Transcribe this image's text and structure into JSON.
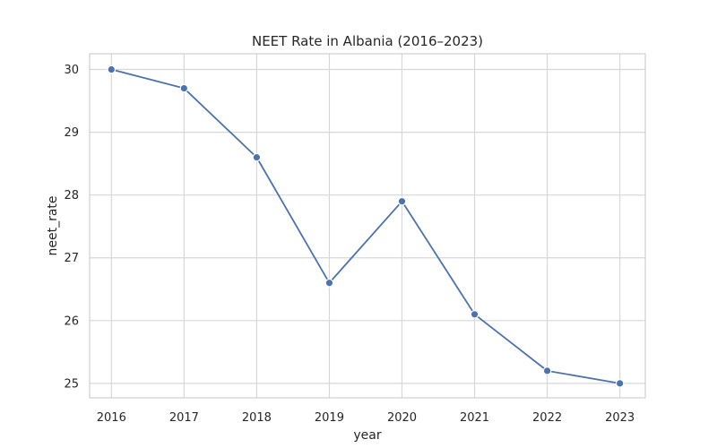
{
  "chart_data": {
    "type": "line",
    "title": "NEET Rate in Albania (2016–2023)",
    "xlabel": "year",
    "ylabel": "neet_rate",
    "x": [
      2016,
      2017,
      2018,
      2019,
      2020,
      2021,
      2022,
      2023
    ],
    "series": [
      {
        "values": [
          30.0,
          29.7,
          28.6,
          26.6,
          27.9,
          26.1,
          25.2,
          25.0
        ]
      }
    ],
    "x_ticks": [
      "2016",
      "2017",
      "2018",
      "2019",
      "2020",
      "2021",
      "2022",
      "2023"
    ],
    "y_ticks": [
      25,
      26,
      27,
      28,
      29,
      30
    ],
    "xlim": [
      2015.7,
      2023.35
    ],
    "ylim": [
      24.77,
      30.25
    ],
    "grid": true,
    "colors": {
      "line": "#4c72b0",
      "background": "#ffffff",
      "grid": "#d7d7d7",
      "frame": "#cfcfcf",
      "text": "#262626"
    }
  }
}
